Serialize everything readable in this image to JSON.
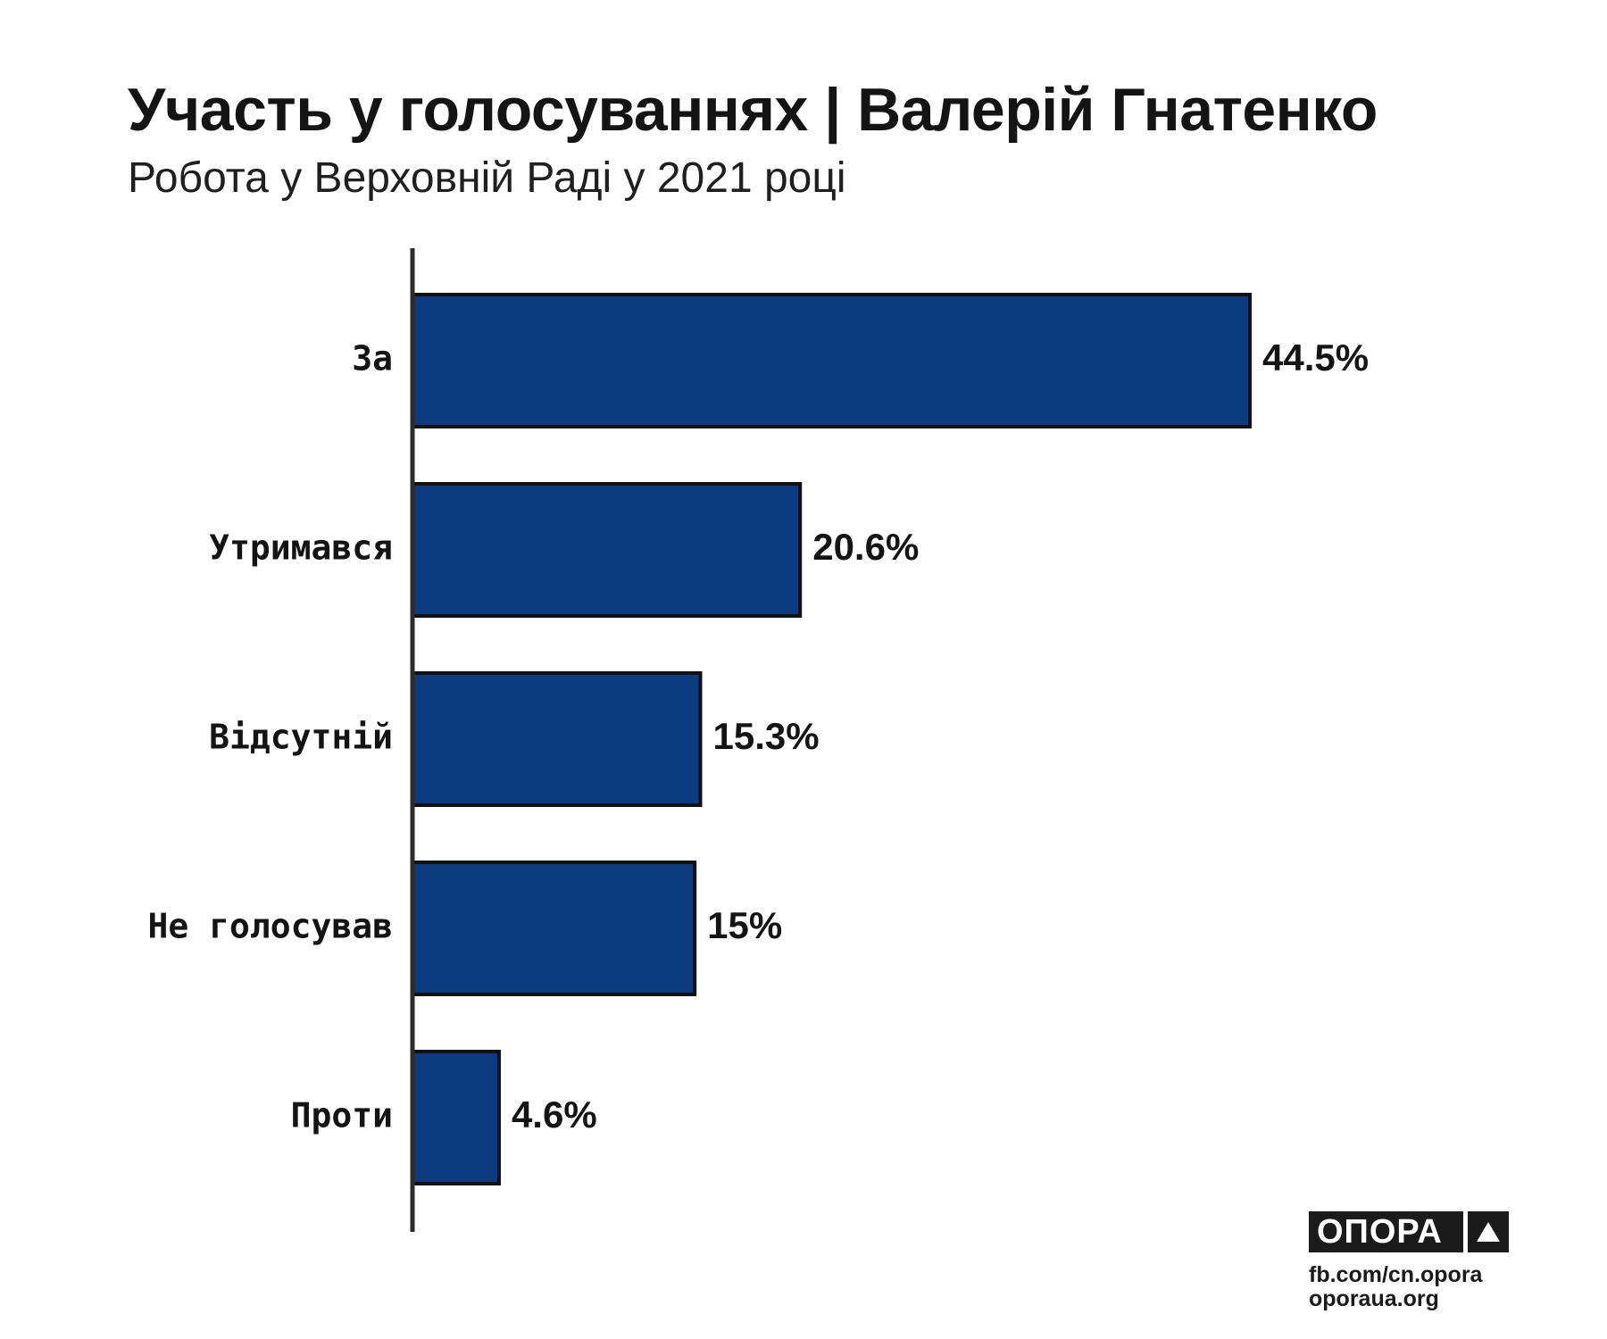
{
  "colors": {
    "bar_fill": "#0d3b80",
    "bar_stroke": "#111111",
    "axis": "#2b2b2b"
  },
  "chart_data": {
    "type": "bar",
    "orientation": "horizontal",
    "title": "Участь у голосуваннях | Валерій Гнатенко",
    "subtitle": "Робота у Верховній Раді у 2021 році",
    "categories": [
      "За",
      "Утримався",
      "Відсутній",
      "Не голосував",
      "Проти"
    ],
    "values": [
      44.5,
      20.6,
      15.3,
      15,
      4.6
    ],
    "value_labels": [
      "44.5%",
      "20.6%",
      "15.3%",
      "15%",
      "4.6%"
    ],
    "xlim": [
      0,
      50
    ],
    "grid": false,
    "legend": "none"
  },
  "logo": {
    "name": "ОПОРА",
    "icon": "triangle-up-icon",
    "line1": "fb.com/cn.opora",
    "line2": "oporaua.org"
  }
}
